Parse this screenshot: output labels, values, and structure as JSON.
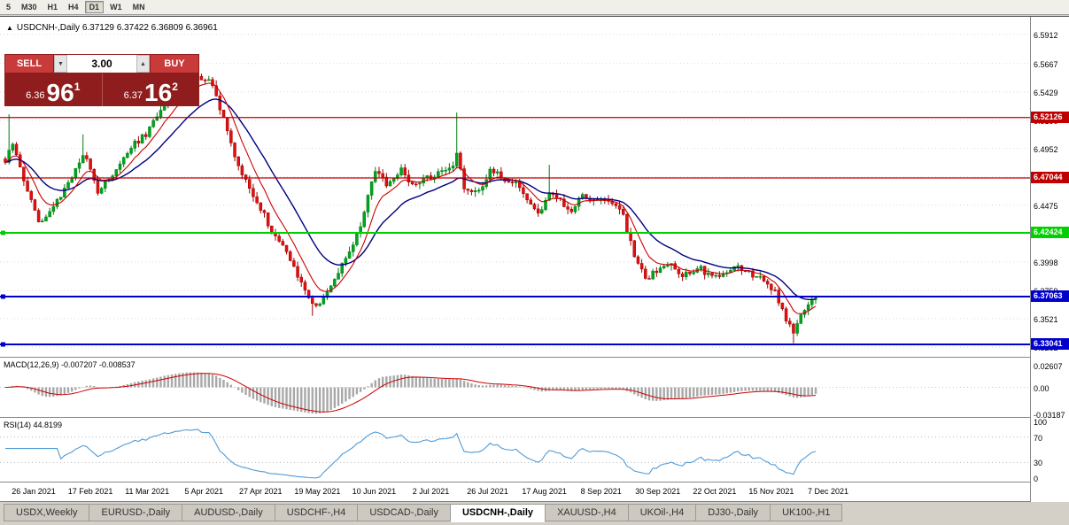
{
  "toolbar": {
    "timeframes": [
      "5",
      "M30",
      "H1",
      "H4",
      "D1",
      "W1",
      "MN"
    ],
    "active": "D1"
  },
  "chart": {
    "collapse_icon": "▲",
    "title": "USDCNH-,Daily",
    "ohlc": "6.37129 6.37422 6.36809 6.36961"
  },
  "trade_panel": {
    "sell_label": "SELL",
    "buy_label": "BUY",
    "volume": "3.00",
    "spin_down_icon": "▼",
    "spin_up_icon": "▲",
    "bid_prefix": "6.36",
    "bid_big": "96",
    "bid_sup": "1",
    "ask_prefix": "6.37",
    "ask_big": "16",
    "ask_sup": "2"
  },
  "price_scale": {
    "ticks": [
      "6.5912",
      "6.5667",
      "6.5429",
      "6.5190",
      "6.4952",
      "6.4713",
      "6.4475",
      "6.4236",
      "6.3998",
      "6.3759",
      "6.3521",
      "6.3282"
    ]
  },
  "levels": [
    {
      "label": "6.52126",
      "value": 6.52126,
      "color": "#c00000",
      "width": 1.2,
      "marker": false
    },
    {
      "label": "6.47044",
      "value": 6.47044,
      "color": "#c00000",
      "width": 1.2,
      "marker": false
    },
    {
      "label": "6.42424",
      "value": 6.42424,
      "color": "#00d000",
      "width": 2,
      "marker": true
    },
    {
      "label": "6.37063",
      "value": 6.37063,
      "color": "#0000cc",
      "width": 2,
      "marker": true
    },
    {
      "label": "6.33041",
      "value": 6.33041,
      "color": "#0000cc",
      "width": 2,
      "marker": true
    }
  ],
  "macd_panel": {
    "label": "MACD(12,26,9) -0.007207 -0.008537",
    "ticks": [
      {
        "label": "0.02607",
        "value": 0.02607
      },
      {
        "label": "0.00",
        "value": 0
      },
      {
        "label": "-0.03187",
        "value": -0.03187
      }
    ]
  },
  "rsi_panel": {
    "label": "RSI(14) 44.8199",
    "ticks": [
      {
        "label": "100",
        "value": 100
      },
      {
        "label": "70",
        "value": 70
      },
      {
        "label": "30",
        "value": 30
      },
      {
        "label": "0",
        "value": 0
      }
    ],
    "levels": [
      70,
      30
    ]
  },
  "x_axis": [
    "26 Jan 2021",
    "17 Feb 2021",
    "11 Mar 2021",
    "5 Apr 2021",
    "27 Apr 2021",
    "19 May 2021",
    "10 Jun 2021",
    "2 Jul 2021",
    "26 Jul 2021",
    "17 Aug 2021",
    "8 Sep 2021",
    "30 Sep 2021",
    "22 Oct 2021",
    "15 Nov 2021",
    "7 Dec 2021"
  ],
  "tabs": {
    "items": [
      "USDX,Weekly",
      "EURUSD-,Daily",
      "AUDUSD-,Daily",
      "USDCHF-,H4",
      "USDCAD-,Daily",
      "USDCNH-,Daily",
      "XAUUSD-,H4",
      "UKOil-,H4",
      "DJ30-,Daily",
      "UK100-,H1"
    ],
    "active_index": 5
  },
  "chart_data": {
    "type": "candlestick",
    "symbol": "USDCNH",
    "timeframe": "Daily",
    "open": 6.37129,
    "high": 6.37422,
    "low": 6.36809,
    "close": 6.36961,
    "bars": 220,
    "price_min": 6.32,
    "price_max": 6.606,
    "noise": 0.0026,
    "last_close": 6.36961,
    "waypoints": [
      [
        0.0,
        6.485
      ],
      [
        0.01,
        6.5
      ],
      [
        0.022,
        6.47
      ],
      [
        0.043,
        6.432
      ],
      [
        0.06,
        6.448
      ],
      [
        0.076,
        6.462
      ],
      [
        0.098,
        6.492
      ],
      [
        0.114,
        6.458
      ],
      [
        0.136,
        6.478
      ],
      [
        0.158,
        6.498
      ],
      [
        0.174,
        6.508
      ],
      [
        0.196,
        6.532
      ],
      [
        0.217,
        6.548
      ],
      [
        0.239,
        6.556
      ],
      [
        0.255,
        6.549
      ],
      [
        0.27,
        6.52
      ],
      [
        0.283,
        6.49
      ],
      [
        0.296,
        6.468
      ],
      [
        0.31,
        6.452
      ],
      [
        0.332,
        6.422
      ],
      [
        0.353,
        6.401
      ],
      [
        0.368,
        6.378
      ],
      [
        0.381,
        6.361
      ],
      [
        0.39,
        6.368
      ],
      [
        0.397,
        6.375
      ],
      [
        0.413,
        6.394
      ],
      [
        0.429,
        6.413
      ],
      [
        0.44,
        6.434
      ],
      [
        0.45,
        6.466
      ],
      [
        0.457,
        6.477
      ],
      [
        0.473,
        6.464
      ],
      [
        0.489,
        6.477
      ],
      [
        0.505,
        6.463
      ],
      [
        0.522,
        6.471
      ],
      [
        0.538,
        6.476
      ],
      [
        0.551,
        6.481
      ],
      [
        0.558,
        6.49
      ],
      [
        0.566,
        6.462
      ],
      [
        0.582,
        6.457
      ],
      [
        0.598,
        6.477
      ],
      [
        0.614,
        6.471
      ],
      [
        0.63,
        6.466
      ],
      [
        0.647,
        6.451
      ],
      [
        0.658,
        6.438
      ],
      [
        0.672,
        6.461
      ],
      [
        0.686,
        6.45
      ],
      [
        0.699,
        6.441
      ],
      [
        0.712,
        6.456
      ],
      [
        0.728,
        6.451
      ],
      [
        0.745,
        6.449
      ],
      [
        0.76,
        6.444
      ],
      [
        0.775,
        6.408
      ],
      [
        0.79,
        6.386
      ],
      [
        0.806,
        6.393
      ],
      [
        0.822,
        6.397
      ],
      [
        0.838,
        6.388
      ],
      [
        0.855,
        6.396
      ],
      [
        0.871,
        6.386
      ],
      [
        0.887,
        6.392
      ],
      [
        0.903,
        6.397
      ],
      [
        0.919,
        6.39
      ],
      [
        0.936,
        6.384
      ],
      [
        0.951,
        6.374
      ],
      [
        0.962,
        6.352
      ],
      [
        0.972,
        6.341
      ],
      [
        0.982,
        6.356
      ],
      [
        0.992,
        6.366
      ],
      [
        1.0,
        6.3696
      ]
    ],
    "spikes": [
      {
        "f": 0.006,
        "high": 6.524
      },
      {
        "f": 0.098,
        "high": 6.507
      },
      {
        "f": 0.558,
        "high": 6.5255
      },
      {
        "f": 0.672,
        "high": 6.4815
      },
      {
        "f": 0.381,
        "low": 6.3545
      },
      {
        "f": 0.972,
        "low": 6.3315
      }
    ],
    "ma_fast_period": 8,
    "ma_slow_period": 20,
    "macd_value": -0.007207,
    "macd_signal_value": -0.008537,
    "rsi_value": 44.8199,
    "colors": {
      "up": "#00a41e",
      "up_edge": "#007a14",
      "down": "#e01010",
      "down_edge": "#a00000",
      "ma_fast": "#cc0000",
      "ma_slow": "#000080",
      "macd_hist": "#a8a8a8",
      "macd_signal": "#cc0000",
      "rsi": "#4f9bd8",
      "grid": "#d9d9d9"
    }
  }
}
